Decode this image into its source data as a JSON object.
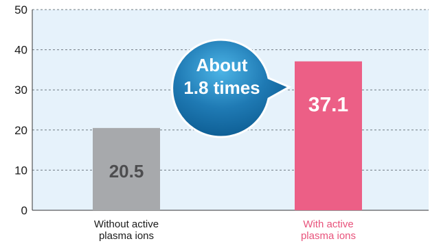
{
  "chart_data": {
    "type": "bar",
    "categories": [
      "Without active plasma ions",
      "With active plasma ions"
    ],
    "category_lines": [
      [
        "Without active",
        "plasma ions"
      ],
      [
        "With active",
        "plasma ions"
      ]
    ],
    "values": [
      20.5,
      37.1
    ],
    "value_labels": [
      "20.5",
      "37.1"
    ],
    "ylim": [
      0,
      50
    ],
    "yticks": [
      0,
      10,
      20,
      30,
      40,
      50
    ],
    "grid": true,
    "legend": "none",
    "colors": {
      "plot_background": "#e6f2fb",
      "grid": "#6f7a82",
      "bar_without": "#a7a9ac",
      "bar_with": "#ec5f86",
      "label_without": "#4d4d4f",
      "label_with": "#ffffff",
      "category_without": "#1a1a1a",
      "category_with": "#e8527b",
      "callout_fill": "#1f7ab4"
    },
    "annotation": {
      "lines": [
        "About",
        "1.8 times"
      ]
    }
  }
}
